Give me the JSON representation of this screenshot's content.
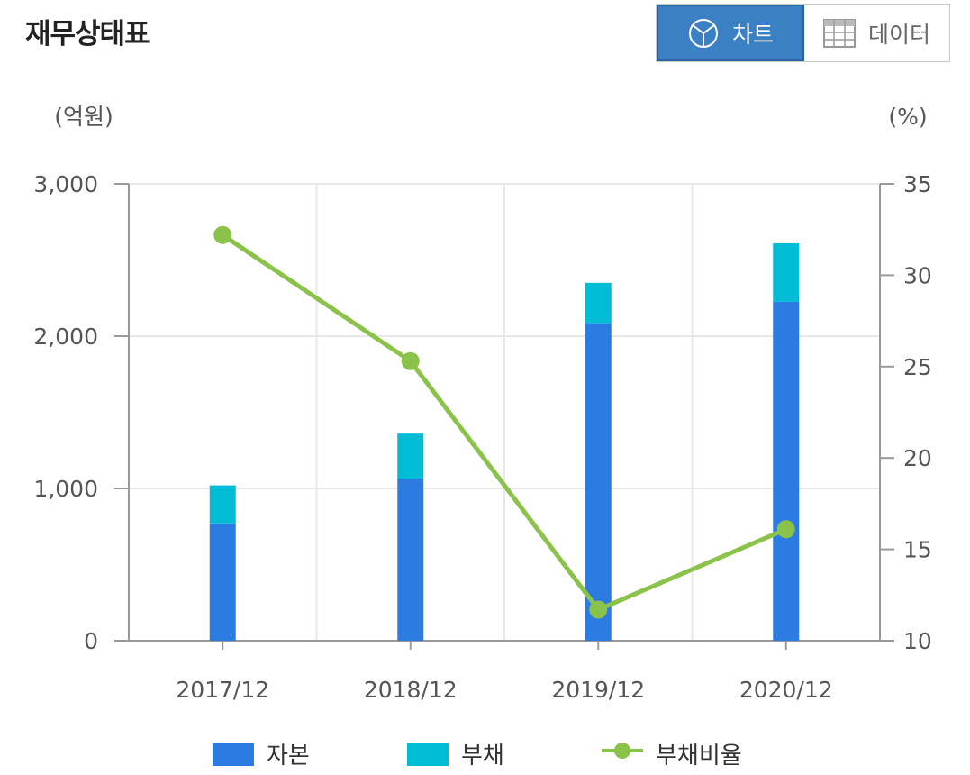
{
  "header": {
    "title": "재무상태표",
    "toggle": {
      "chart_label": "차트",
      "data_label": "데이터",
      "active": "chart"
    }
  },
  "colors": {
    "equity": "#2b7be0",
    "liabilities": "#00bcd4",
    "ratio_line": "#8bc34a",
    "active_toggle": "#3b80c4"
  },
  "icons": {
    "chart_toggle": "pie-chart-icon",
    "data_toggle": "table-grid-icon"
  },
  "chart_data": {
    "type": "bar",
    "stacked": true,
    "categories": [
      "2017/12",
      "2018/12",
      "2019/12",
      "2020/12"
    ],
    "left_axis": {
      "unit": "(억원)",
      "range": [
        0,
        3000
      ],
      "ticks": [
        "0",
        "1,000",
        "2,000",
        "3,000"
      ]
    },
    "right_axis": {
      "unit": "(%)",
      "range": [
        10,
        35
      ],
      "ticks": [
        "10",
        "15",
        "20",
        "25",
        "30",
        "35"
      ]
    },
    "series": [
      {
        "name": "자본",
        "type": "bar",
        "axis": "left",
        "values": [
          770,
          1065,
          2085,
          2225
        ]
      },
      {
        "name": "부채",
        "type": "bar",
        "axis": "left",
        "values": [
          250,
          295,
          265,
          385
        ]
      },
      {
        "name": "부채비율",
        "type": "line",
        "axis": "right",
        "values": [
          32.2,
          25.3,
          11.7,
          16.1
        ]
      }
    ],
    "grid": true,
    "legend_position": "bottom"
  }
}
